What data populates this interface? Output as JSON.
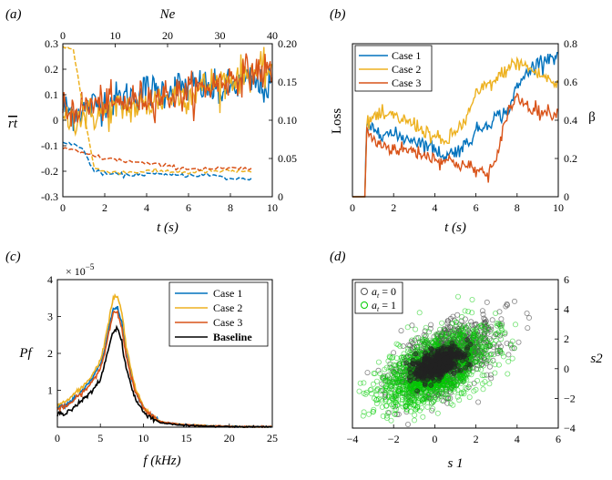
{
  "chart_data": [
    {
      "panel": "(a)",
      "type": "line",
      "xlabel": "t (s)",
      "ylabel": "rt",
      "top_xlabel": "Ne",
      "xlim": [
        0,
        10
      ],
      "ylim": [
        -0.3,
        0.3
      ],
      "xticks": [
        "0",
        "2",
        "4",
        "6",
        "8",
        "10"
      ],
      "yticks": [
        "-0.3",
        "-0.2",
        "-0.1",
        "0",
        "0.1",
        "0.2",
        "0.3"
      ],
      "top_xlim": [
        0,
        40
      ],
      "top_xticks": [
        "0",
        "10",
        "20",
        "30",
        "40"
      ],
      "right_ylim": [
        0,
        0.2
      ],
      "right_yticks": [
        "0",
        "0.05",
        "0.10",
        "0.15",
        "0.20"
      ],
      "series": [
        {
          "color": "#0072BD",
          "kind": "noisy",
          "x": [
            0,
            0.5,
            1,
            1.5,
            2,
            2.5,
            3,
            3.5,
            4,
            4.5,
            5,
            5.5,
            6,
            6.5,
            7,
            7.5,
            8,
            8.5,
            9,
            9.5,
            10
          ],
          "y": [
            0.05,
            0.03,
            0.04,
            0.06,
            0.07,
            0.08,
            0.09,
            0.1,
            0.12,
            0.11,
            0.12,
            0.13,
            0.13,
            0.14,
            0.12,
            0.11,
            0.13,
            0.14,
            0.15,
            0.13,
            0.13
          ]
        },
        {
          "color": "#EDB120",
          "kind": "noisy",
          "x": [
            0,
            0.5,
            1,
            1.5,
            2,
            2.5,
            3,
            3.5,
            4,
            4.5,
            5,
            5.5,
            6,
            6.5,
            7,
            7.5,
            8,
            8.5,
            9,
            9.5,
            10
          ],
          "y": [
            0.0,
            0.01,
            0.02,
            0.02,
            0.03,
            0.04,
            0.05,
            0.05,
            0.06,
            0.08,
            0.09,
            0.1,
            0.1,
            0.12,
            0.14,
            0.15,
            0.16,
            0.18,
            0.19,
            0.19,
            0.2
          ]
        },
        {
          "color": "#D95319",
          "kind": "noisy",
          "x": [
            0,
            0.5,
            1,
            1.5,
            2,
            2.5,
            3,
            3.5,
            4,
            4.5,
            5,
            5.5,
            6,
            6.5,
            7,
            7.5,
            8,
            8.5,
            9,
            9.5,
            10
          ],
          "y": [
            0.03,
            0.04,
            0.05,
            0.06,
            0.07,
            0.06,
            0.07,
            0.08,
            0.09,
            0.09,
            0.1,
            0.1,
            0.11,
            0.12,
            0.13,
            0.15,
            0.16,
            0.18,
            0.19,
            0.19,
            0.2
          ]
        },
        {
          "color": "#0072BD",
          "kind": "dashed",
          "x": [
            0,
            0.5,
            1,
            1.5,
            2,
            3,
            4,
            5,
            6,
            7,
            8,
            9
          ],
          "y": [
            -0.09,
            -0.09,
            -0.12,
            -0.2,
            -0.21,
            -0.215,
            -0.21,
            -0.215,
            -0.215,
            -0.215,
            -0.23,
            -0.23
          ]
        },
        {
          "color": "#EDB120",
          "kind": "dashed",
          "x": [
            0,
            0.5,
            1,
            1.5,
            2,
            3,
            4,
            5,
            6,
            7,
            8,
            9
          ],
          "y": [
            0.29,
            0.28,
            0.03,
            -0.19,
            -0.2,
            -0.205,
            -0.2,
            -0.2,
            -0.205,
            -0.2,
            -0.2,
            -0.2
          ]
        },
        {
          "color": "#D95319",
          "kind": "dashed",
          "x": [
            0,
            0.5,
            1,
            1.5,
            2,
            3,
            4,
            5,
            6,
            7,
            8,
            9
          ],
          "y": [
            -0.11,
            -0.12,
            -0.13,
            -0.14,
            -0.15,
            -0.16,
            -0.17,
            -0.18,
            -0.19,
            -0.19,
            -0.19,
            -0.19
          ]
        }
      ]
    },
    {
      "panel": "(b)",
      "type": "line",
      "xlabel": "t (s)",
      "ylabel": "Loss",
      "right_ylabel": "β",
      "xlim": [
        0,
        10
      ],
      "right_ylim": [
        0,
        0.8
      ],
      "xticks": [
        "0",
        "2",
        "4",
        "6",
        "8",
        "10"
      ],
      "right_yticks": [
        "0",
        "0.2",
        "0.4",
        "0.6",
        "0.8"
      ],
      "legend_position": "top-left",
      "series": [
        {
          "name": "Case 1",
          "color": "#0072BD",
          "x": [
            0,
            0.6,
            0.7,
            1,
            2,
            3,
            4,
            4.5,
            5,
            5.5,
            6,
            6.5,
            7,
            7.5,
            8,
            8.5,
            9,
            9.5,
            10
          ],
          "y": [
            0,
            0,
            0.36,
            0.36,
            0.32,
            0.3,
            0.25,
            0.21,
            0.24,
            0.27,
            0.34,
            0.38,
            0.42,
            0.44,
            0.57,
            0.65,
            0.7,
            0.73,
            0.74
          ]
        },
        {
          "name": "Case 2",
          "color": "#EDB120",
          "x": [
            0,
            0.6,
            0.7,
            1,
            2,
            3,
            4,
            4.5,
            5,
            5.5,
            6,
            6.5,
            7,
            7.5,
            8,
            8.5,
            9,
            9.5,
            10
          ],
          "y": [
            0,
            0,
            0.37,
            0.42,
            0.42,
            0.38,
            0.31,
            0.28,
            0.34,
            0.4,
            0.53,
            0.58,
            0.61,
            0.67,
            0.7,
            0.68,
            0.64,
            0.62,
            0.57
          ]
        },
        {
          "name": "Case 3",
          "color": "#D95319",
          "x": [
            0,
            0.6,
            0.7,
            1,
            2,
            3,
            4,
            4.5,
            5,
            5.5,
            6,
            6.5,
            7,
            7.5,
            8,
            8.5,
            9,
            9.5,
            10
          ],
          "y": [
            0,
            0,
            0.36,
            0.29,
            0.25,
            0.24,
            0.2,
            0.19,
            0.18,
            0.16,
            0.14,
            0.12,
            0.18,
            0.44,
            0.52,
            0.48,
            0.45,
            0.44,
            0.44
          ]
        }
      ]
    },
    {
      "panel": "(c)",
      "type": "line",
      "xlabel": "f (kHz)",
      "ylabel": "Pf",
      "y_multiplier": "× 10",
      "y_multiplier_exp": "−5",
      "xlim": [
        0,
        25
      ],
      "ylim": [
        0,
        4
      ],
      "xticks": [
        "0",
        "5",
        "10",
        "15",
        "20",
        "25"
      ],
      "yticks": [
        "1",
        "2",
        "3",
        "4"
      ],
      "legend_position": "top-right",
      "series": [
        {
          "name": "Case 1",
          "color": "#0072BD",
          "x": [
            0,
            1,
            2,
            3,
            4,
            5,
            5.5,
            6,
            6.5,
            7,
            7.5,
            8,
            9,
            10,
            11,
            12,
            14,
            16,
            18,
            20,
            22,
            25
          ],
          "y": [
            0.55,
            0.6,
            0.8,
            1.0,
            1.3,
            1.7,
            2.1,
            2.7,
            3.2,
            3.25,
            2.8,
            2.0,
            1.0,
            0.5,
            0.3,
            0.15,
            0.08,
            0.05,
            0.03,
            0.02,
            0.01,
            0.01
          ]
        },
        {
          "name": "Case 2",
          "color": "#EDB120",
          "x": [
            0,
            1,
            2,
            3,
            4,
            5,
            5.5,
            6,
            6.5,
            7,
            7.5,
            8,
            9,
            10,
            11,
            12,
            14,
            16,
            18,
            20,
            22,
            25
          ],
          "y": [
            0.6,
            0.7,
            0.9,
            1.1,
            1.4,
            1.8,
            2.3,
            2.9,
            3.5,
            3.55,
            3.1,
            2.2,
            1.1,
            0.55,
            0.3,
            0.15,
            0.08,
            0.05,
            0.03,
            0.02,
            0.01,
            0.01
          ]
        },
        {
          "name": "Case 3",
          "color": "#D95319",
          "x": [
            0,
            1,
            2,
            3,
            4,
            5,
            5.5,
            6,
            6.5,
            7,
            7.5,
            8,
            9,
            10,
            11,
            12,
            14,
            16,
            18,
            20,
            22,
            25
          ],
          "y": [
            0.5,
            0.55,
            0.75,
            0.95,
            1.2,
            1.6,
            2.0,
            2.6,
            3.1,
            3.15,
            2.7,
            1.9,
            1.0,
            0.5,
            0.3,
            0.15,
            0.08,
            0.05,
            0.03,
            0.02,
            0.01,
            0.01
          ]
        },
        {
          "name": "Baseline",
          "color": "#000000",
          "x": [
            0,
            1,
            2,
            3,
            4,
            5,
            5.5,
            6,
            6.5,
            7,
            7.5,
            8,
            9,
            10,
            11,
            12,
            14,
            16,
            18,
            20,
            22,
            25
          ],
          "y": [
            0.35,
            0.4,
            0.55,
            0.75,
            0.95,
            1.3,
            1.7,
            2.2,
            2.6,
            2.7,
            2.3,
            1.6,
            0.8,
            0.4,
            0.25,
            0.12,
            0.06,
            0.04,
            0.02,
            0.01,
            0.01,
            0.01
          ]
        }
      ]
    },
    {
      "panel": "(d)",
      "type": "scatter",
      "xlabel": "s 1",
      "ylabel": "s2",
      "xlim": [
        -4,
        6
      ],
      "ylim": [
        -4,
        6
      ],
      "xticks": [
        "−4",
        "−2",
        "0",
        "2",
        "4",
        "6"
      ],
      "yticks": [
        "−4",
        "−2",
        "0",
        "2",
        "4",
        "6"
      ],
      "legend_position": "top-left",
      "series": [
        {
          "name": "a_t = 0",
          "label_main": "a",
          "label_sub": "t",
          "label_rest": " = 0",
          "color": "#555555",
          "center": [
            0.5,
            0.6
          ],
          "spread": [
            1.2,
            1.2
          ],
          "count": 1200
        },
        {
          "name": "a_t = 1",
          "label_main": "a",
          "label_sub": "t",
          "label_rest": " = 1",
          "color": "#00CC00",
          "center": [
            0.0,
            0.0
          ],
          "spread": [
            1.3,
            1.3
          ],
          "count": 1400
        }
      ]
    }
  ]
}
